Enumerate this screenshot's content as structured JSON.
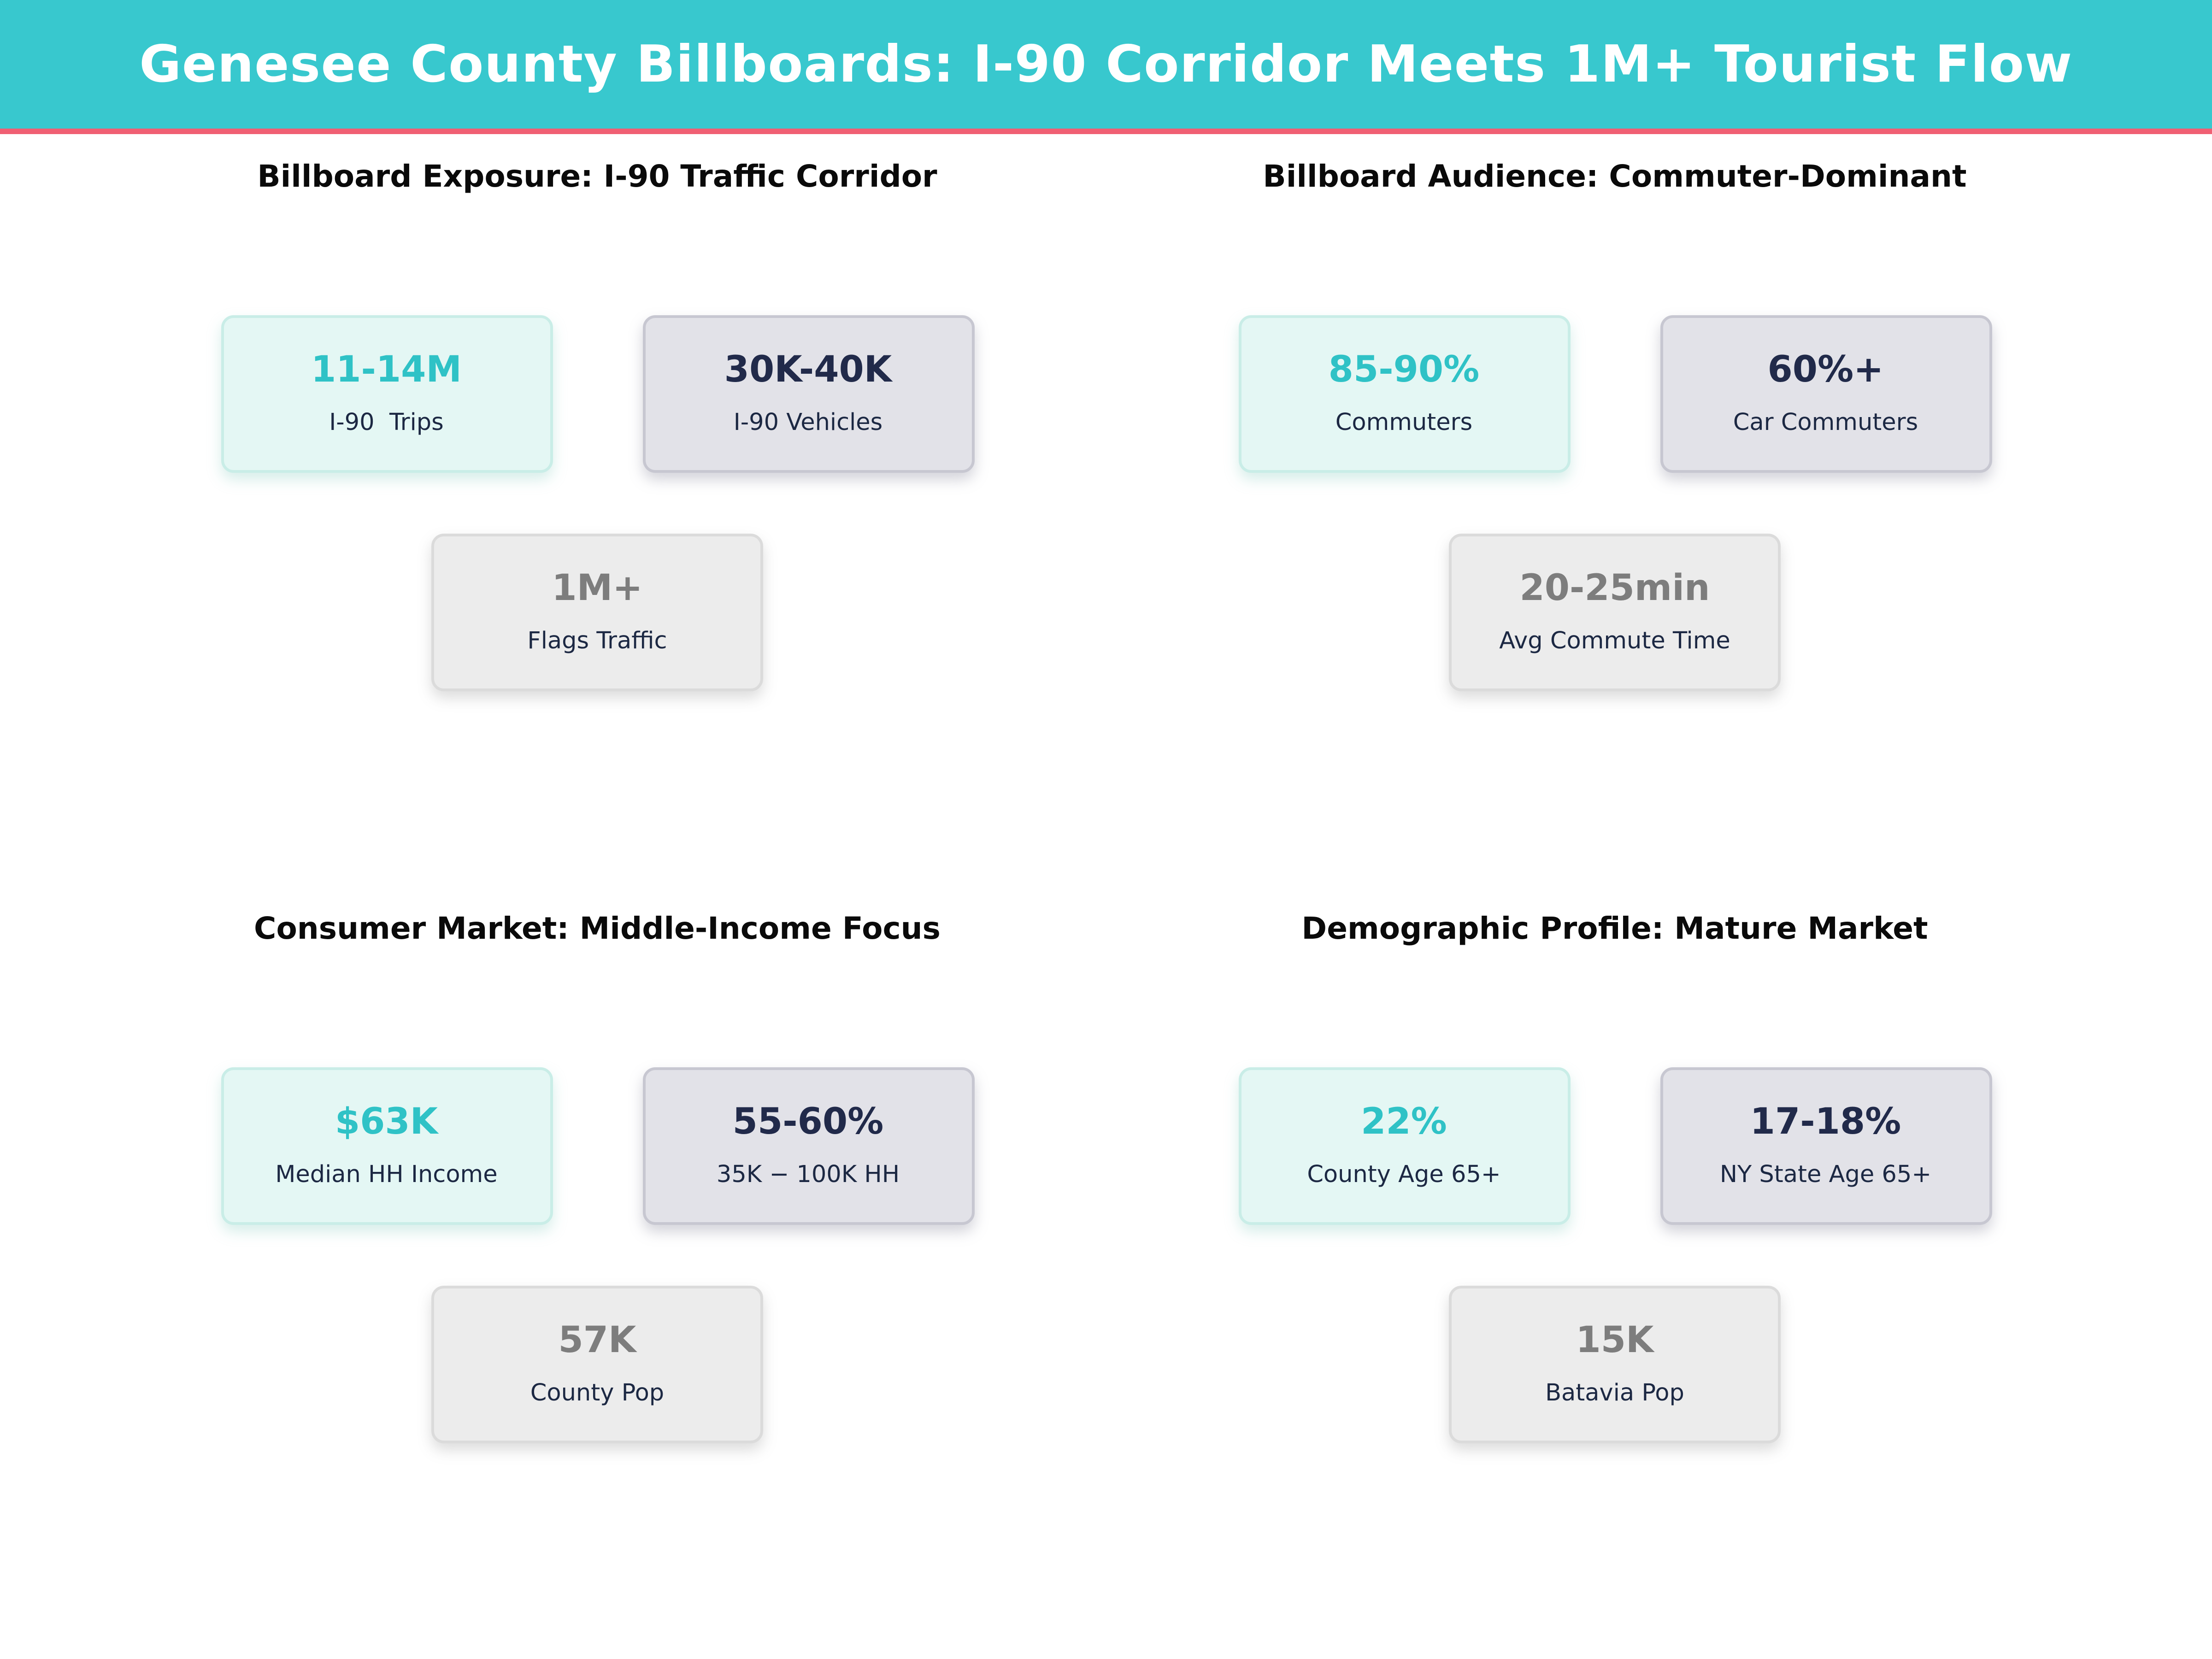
{
  "header": {
    "title": "Genesee County Billboards: I-90 Corridor Meets 1M+ Tourist Flow",
    "bg_color": "#38C8CE",
    "accent_line_color": "#F05F73",
    "text_color": "#FFFFFF"
  },
  "colors": {
    "teal_value": "#2FC2C6",
    "navy_value": "#212A4A",
    "gray_value": "#7D7D7D",
    "label_text": "#1C2843",
    "card_teal_bg": "#E4F7F4",
    "card_teal_border": "#C9EDE7",
    "card_lavender_bg": "#E2E2E8",
    "card_lavender_border": "#C7C7D1",
    "card_gray_bg": "#ECECEC",
    "card_gray_border": "#DBDBDB",
    "page_bg": "#FFFFFF"
  },
  "sections": [
    {
      "title": "Billboard Exposure: I-90 Traffic Corridor",
      "cards": [
        {
          "value": "11-14M",
          "label": "I-90  Trips"
        },
        {
          "value": "30K-40K",
          "label": "I-90 Vehicles"
        },
        {
          "value": "1M+",
          "label": "Flags Traffic"
        }
      ]
    },
    {
      "title": "Billboard Audience: Commuter-Dominant",
      "cards": [
        {
          "value": "85-90%",
          "label": "Commuters"
        },
        {
          "value": "60%+",
          "label": "Car Commuters"
        },
        {
          "value": "20-25min",
          "label": "Avg Commute Time"
        }
      ]
    },
    {
      "title": "Consumer Market: Middle-Income Focus",
      "cards": [
        {
          "value": "$63K",
          "label": "Median HH Income"
        },
        {
          "value": "55-60%",
          "label": "35K − 100K HH"
        },
        {
          "value": "57K",
          "label": "County Pop"
        }
      ]
    },
    {
      "title": "Demographic Profile: Mature Market",
      "cards": [
        {
          "value": "22%",
          "label": "County Age 65+"
        },
        {
          "value": "17-18%",
          "label": "NY State Age 65+"
        },
        {
          "value": "15K",
          "label": "Batavia Pop"
        }
      ]
    }
  ],
  "chart_data": {
    "type": "table",
    "title": "Genesee County Billboards: I-90 Corridor Meets 1M+ Tourist Flow",
    "columns": [
      "section",
      "metric",
      "value"
    ],
    "rows": [
      [
        "Billboard Exposure: I-90 Traffic Corridor",
        "I-90  Trips",
        "11-14M"
      ],
      [
        "Billboard Exposure: I-90 Traffic Corridor",
        "I-90 Vehicles",
        "30K-40K"
      ],
      [
        "Billboard Exposure: I-90 Traffic Corridor",
        "Flags Traffic",
        "1M+"
      ],
      [
        "Billboard Audience: Commuter-Dominant",
        "Commuters",
        "85-90%"
      ],
      [
        "Billboard Audience: Commuter-Dominant",
        "Car Commuters",
        "60%+"
      ],
      [
        "Billboard Audience: Commuter-Dominant",
        "Avg Commute Time",
        "20-25min"
      ],
      [
        "Consumer Market: Middle-Income Focus",
        "Median HH Income",
        "$63K"
      ],
      [
        "Consumer Market: Middle-Income Focus",
        "35K − 100K HH",
        "55-60%"
      ],
      [
        "Consumer Market: Middle-Income Focus",
        "County Pop",
        "57K"
      ],
      [
        "Demographic Profile: Mature Market",
        "County Age 65+",
        "22%"
      ],
      [
        "Demographic Profile: Mature Market",
        "NY State Age 65+",
        "17-18%"
      ],
      [
        "Demographic Profile: Mature Market",
        "Batavia Pop",
        "15K"
      ]
    ],
    "layout": "2x2 grid of KPI card groups; each group has 2 cards on top row and 1 centered below"
  }
}
